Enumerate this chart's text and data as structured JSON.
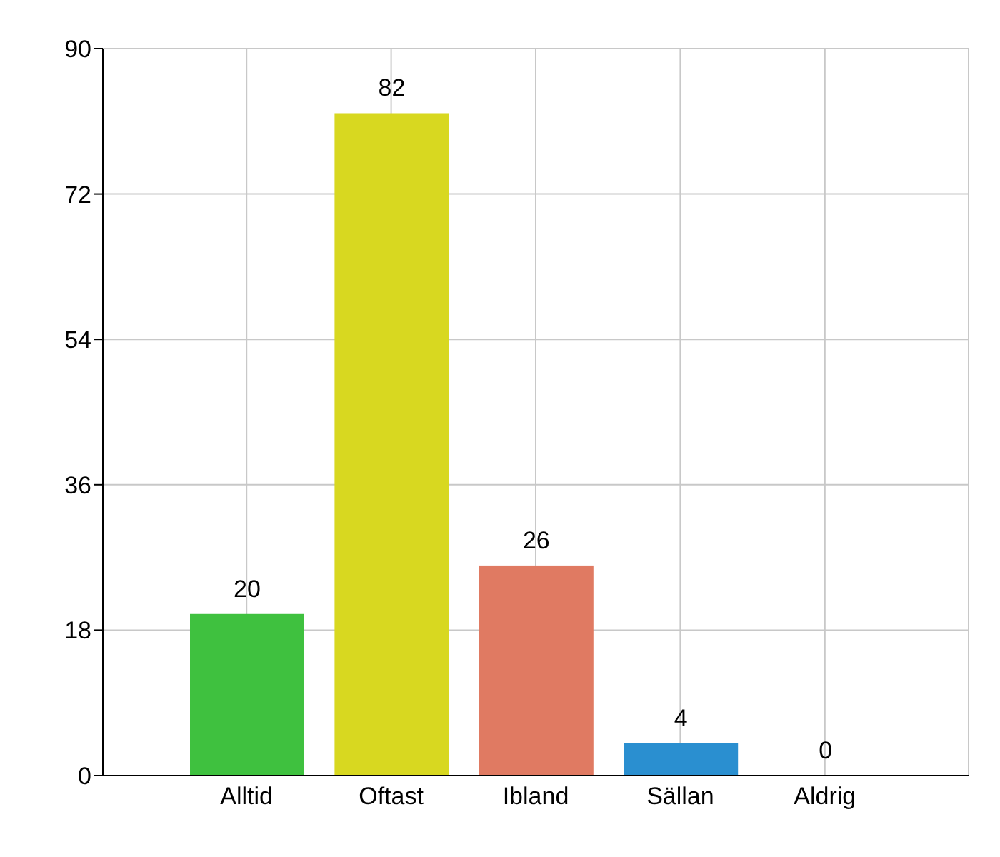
{
  "chart_data": {
    "type": "bar",
    "categories": [
      "Alltid",
      "Oftast",
      "Ibland",
      "Sällan",
      "Aldrig"
    ],
    "values": [
      20,
      82,
      26,
      4,
      0
    ],
    "colors": [
      "#3fc13f",
      "#d8d820",
      "#e07a62",
      "#2a8fd0",
      "#888888"
    ],
    "ylim": [
      0,
      90
    ],
    "yticks": [
      0,
      18,
      36,
      54,
      72,
      90
    ],
    "grid": true,
    "data_labels": true
  }
}
